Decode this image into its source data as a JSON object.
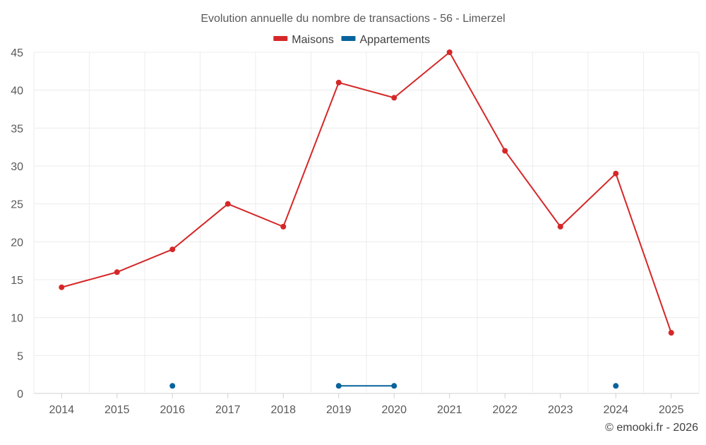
{
  "chart_data": {
    "type": "line",
    "title": "Evolution annuelle du nombre de transactions - 56 - Limerzel",
    "categories": [
      "2014",
      "2015",
      "2016",
      "2017",
      "2018",
      "2019",
      "2020",
      "2021",
      "2022",
      "2023",
      "2024",
      "2025"
    ],
    "series": [
      {
        "name": "Maisons",
        "color": "#d62728",
        "values": [
          14,
          16,
          19,
          25,
          22,
          41,
          39,
          45,
          32,
          22,
          29,
          8
        ]
      },
      {
        "name": "Appartements",
        "color": "#08639c",
        "values": [
          null,
          null,
          1,
          null,
          null,
          1,
          1,
          null,
          null,
          null,
          1,
          null
        ]
      }
    ],
    "yticks": [
      "0",
      "5",
      "10",
      "15",
      "20",
      "25",
      "30",
      "35",
      "40",
      "45"
    ],
    "ylim": [
      0,
      45
    ],
    "xlabel": "",
    "ylabel": "",
    "grid": true,
    "legend": "top-center"
  },
  "credit": "© emooki.fr - 2026"
}
